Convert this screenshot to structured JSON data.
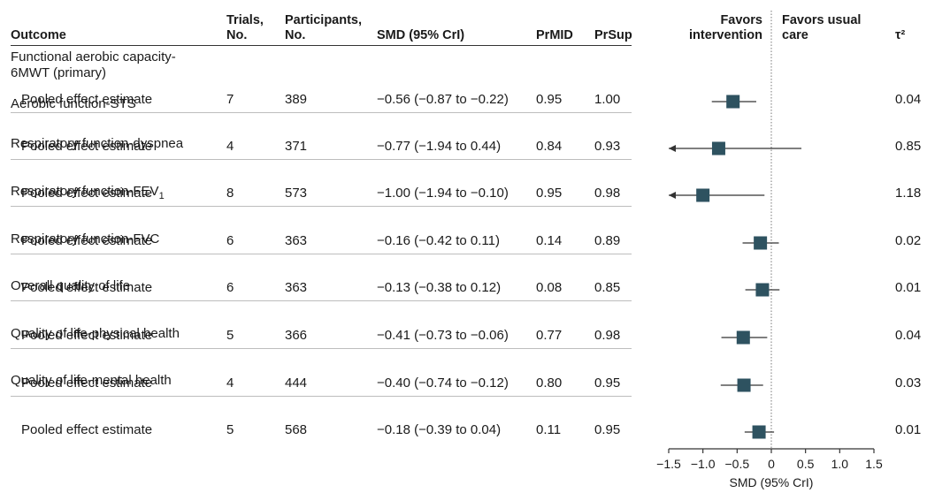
{
  "headers": {
    "outcome": "Outcome",
    "trials": "Trials, No.",
    "participants": "Participants, No.",
    "smd": "SMD (95% CrI)",
    "prmid": "PrMID",
    "prsup": "PrSup",
    "favors_intervention": "Favors intervention",
    "favors_usual_care": "Favors usual care",
    "tau": "τ²"
  },
  "rows": [
    {
      "outcome": "Functional aerobic capacity-6MWT (primary)",
      "label": "Pooled effect estimate",
      "trials": "7",
      "participants": "389",
      "smd_text": "−0.56 (−0.87 to −0.22)",
      "prmid": "0.95",
      "prsup": "1.00",
      "tau2": "0.04"
    },
    {
      "outcome": "Aerobic function-STS",
      "label": "Pooled effect estimate",
      "trials": "4",
      "participants": "371",
      "smd_text": "−0.77 (−1.94 to 0.44)",
      "prmid": "0.84",
      "prsup": "0.93",
      "tau2": "0.85"
    },
    {
      "outcome": "Respiratory function-dyspnea",
      "label": "Pooled effect estimate",
      "trials": "8",
      "participants": "573",
      "smd_text": "−1.00 (−1.94 to −0.10)",
      "prmid": "0.95",
      "prsup": "0.98",
      "tau2": "1.18"
    },
    {
      "outcome": "Respiratory function-FEV",
      "outcome_sub": "1",
      "label": "Pooled effect estimate",
      "trials": "6",
      "participants": "363",
      "smd_text": "−0.16 (−0.42 to 0.11)",
      "prmid": "0.14",
      "prsup": "0.89",
      "tau2": "0.02"
    },
    {
      "outcome": "Respiratory function-FVC",
      "label": "Pooled effect estimate",
      "trials": "6",
      "participants": "363",
      "smd_text": "−0.13 (−0.38 to 0.12)",
      "prmid": "0.08",
      "prsup": "0.85",
      "tau2": "0.01"
    },
    {
      "outcome": "Overall quality of life",
      "label": "Pooled effect estimate",
      "trials": "5",
      "participants": "366",
      "smd_text": "−0.41 (−0.73 to −0.06)",
      "prmid": "0.77",
      "prsup": "0.98",
      "tau2": "0.04"
    },
    {
      "outcome": "Quality of life-physical health",
      "label": "Pooled effect estimate",
      "trials": "4",
      "participants": "444",
      "smd_text": "−0.40 (−0.74 to −0.12)",
      "prmid": "0.80",
      "prsup": "0.95",
      "tau2": "0.03"
    },
    {
      "outcome": "Quality of life-mental health",
      "label": "Pooled effect estimate",
      "trials": "5",
      "participants": "568",
      "smd_text": "−0.18 (−0.39 to 0.04)",
      "prmid": "0.11",
      "prsup": "0.95",
      "tau2": "0.01"
    }
  ],
  "chart_data": {
    "type": "scatter",
    "xlabel": "SMD (95% CrI)",
    "xlim": [
      -1.5,
      1.5
    ],
    "xticks": [
      "−1.5",
      "−1.0",
      "−0.5",
      "0",
      "0.5",
      "1.0",
      "1.5"
    ],
    "xtick_values": [
      -1.5,
      -1.0,
      -0.5,
      0,
      0.5,
      1.0,
      1.5
    ],
    "reference_line": 0,
    "marker_color": "#2e5260",
    "line_color": "#333333",
    "points": [
      {
        "est": -0.56,
        "lo": -0.87,
        "hi": -0.22
      },
      {
        "est": -0.77,
        "lo": -1.94,
        "hi": 0.44
      },
      {
        "est": -1.0,
        "lo": -1.94,
        "hi": -0.1
      },
      {
        "est": -0.16,
        "lo": -0.42,
        "hi": 0.11
      },
      {
        "est": -0.13,
        "lo": -0.38,
        "hi": 0.12
      },
      {
        "est": -0.41,
        "lo": -0.73,
        "hi": -0.06
      },
      {
        "est": -0.4,
        "lo": -0.74,
        "hi": -0.12
      },
      {
        "est": -0.18,
        "lo": -0.39,
        "hi": 0.04
      }
    ]
  }
}
